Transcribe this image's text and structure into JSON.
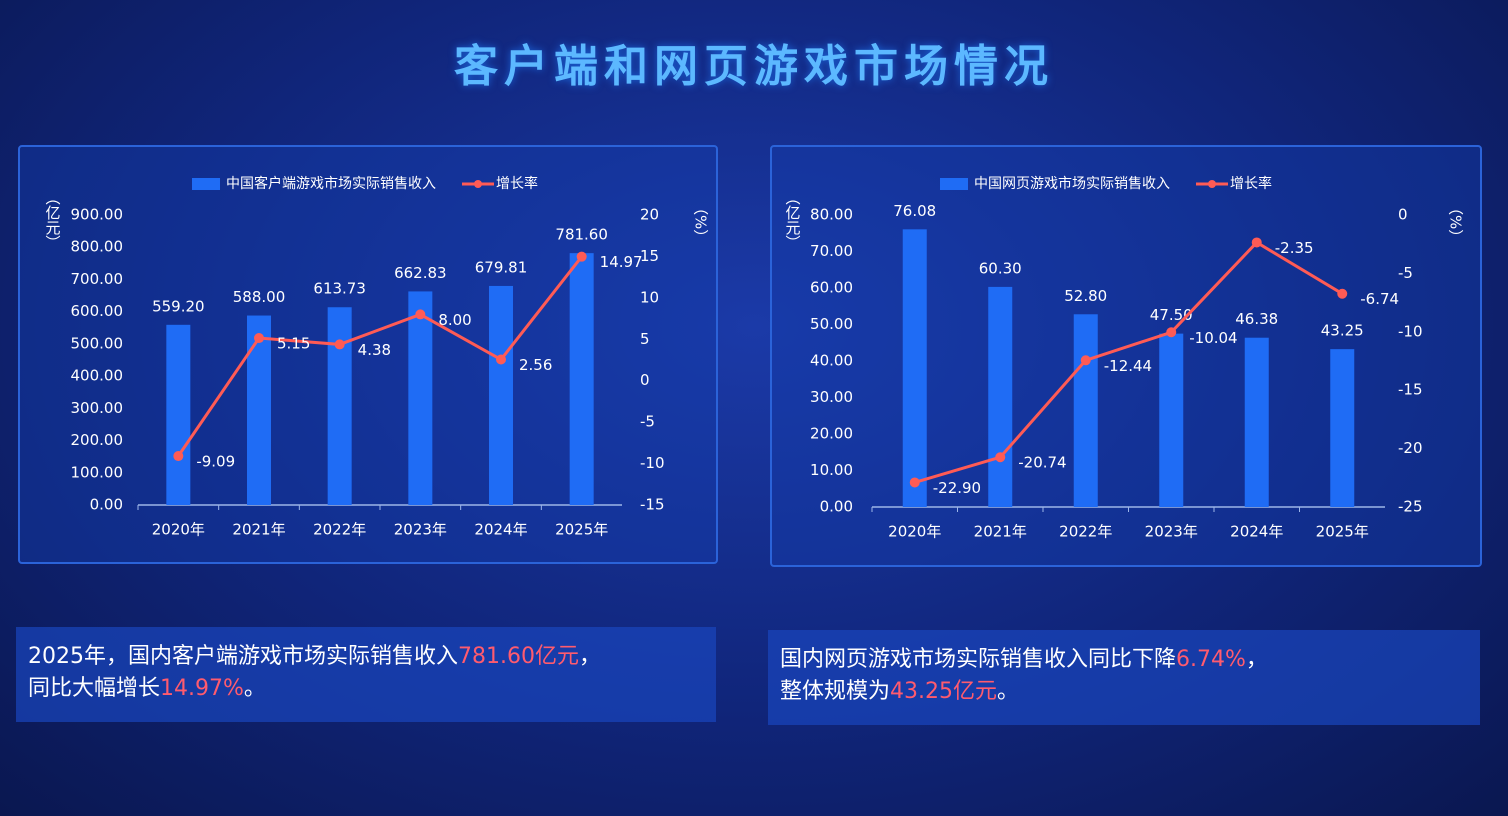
{
  "title": "客户端和网页游戏市场情况",
  "chart_data": [
    {
      "type": "combo",
      "categories": [
        "2020年",
        "2021年",
        "2022年",
        "2023年",
        "2024年",
        "2025年"
      ],
      "y_label": "（亿元）",
      "y2_label": "（%）",
      "series": [
        {
          "name": "中国客户端游戏市场实际销售收入",
          "type": "bar",
          "color": "#1f6cf5",
          "values": [
            559.2,
            588,
            613.73,
            662.83,
            679.81,
            781.6
          ],
          "value_labels": [
            "559.20",
            "588.00",
            "613.73",
            "662.83",
            "679.81",
            "781.60"
          ]
        },
        {
          "name": "增长率",
          "type": "line",
          "axis": "y2",
          "color": "#ff5b55",
          "values": [
            -9.09,
            5.15,
            4.38,
            8,
            2.56,
            14.97
          ],
          "value_labels": [
            "-9.09",
            "5.15",
            "4.38",
            "8.00",
            "2.56",
            "14.97"
          ]
        }
      ],
      "ylim": [
        0,
        900
      ],
      "yticks": [
        {
          "value": 0,
          "label": "0.00"
        },
        {
          "value": 100,
          "label": "100.00"
        },
        {
          "value": 200,
          "label": "200.00"
        },
        {
          "value": 300,
          "label": "300.00"
        },
        {
          "value": 400,
          "label": "400.00"
        },
        {
          "value": 500,
          "label": "500.00"
        },
        {
          "value": 600,
          "label": "600.00"
        },
        {
          "value": 700,
          "label": "700.00"
        },
        {
          "value": 800,
          "label": "800.00"
        },
        {
          "value": 900,
          "label": "900.00"
        }
      ],
      "y2lim": [
        -15,
        20
      ],
      "y2ticks": [
        -15,
        -10,
        -5,
        0,
        5,
        10,
        15,
        20
      ]
    },
    {
      "type": "combo",
      "categories": [
        "2020年",
        "2021年",
        "2022年",
        "2023年",
        "2024年",
        "2025年"
      ],
      "y_label": "（亿元）",
      "y2_label": "（%）",
      "series": [
        {
          "name": "中国网页游戏市场实际销售收入",
          "type": "bar",
          "color": "#1f6cf5",
          "values": [
            76.08,
            60.3,
            52.8,
            47.5,
            46.38,
            43.25
          ],
          "value_labels": [
            "76.08",
            "60.30",
            "52.80",
            "47.50",
            "46.38",
            "43.25"
          ]
        },
        {
          "name": "增长率",
          "type": "line",
          "axis": "y2",
          "color": "#ff5b55",
          "values": [
            -22.9,
            -20.74,
            -12.44,
            -10.04,
            -2.35,
            -6.74
          ],
          "value_labels": [
            "-22.90",
            "-20.74",
            "-12.44",
            "-10.04",
            "-2.35",
            "-6.74"
          ]
        }
      ],
      "ylim": [
        0,
        80
      ],
      "yticks": [
        {
          "value": 0,
          "label": "0.00"
        },
        {
          "value": 10,
          "label": "10.00"
        },
        {
          "value": 20,
          "label": "20.00"
        },
        {
          "value": 30,
          "label": "30.00"
        },
        {
          "value": 40,
          "label": "40.00"
        },
        {
          "value": 50,
          "label": "50.00"
        },
        {
          "value": 60,
          "label": "60.00"
        },
        {
          "value": 70,
          "label": "70.00"
        },
        {
          "value": 80,
          "label": "80.00"
        }
      ],
      "y2lim": [
        -25,
        0
      ],
      "y2ticks": [
        -25,
        -20,
        -15,
        -10,
        -5,
        0
      ]
    }
  ],
  "captions": [
    {
      "segments": [
        {
          "text": "2025年，国内客户端游戏市场实际销售收入",
          "color": "#ffffff"
        },
        {
          "text": "781.60亿元",
          "color": "#ff5b6e"
        },
        {
          "text": "，",
          "color": "#ffffff"
        }
      ]
    },
    {
      "segments": [
        {
          "text": "同比大幅增长",
          "color": "#ffffff"
        },
        {
          "text": "14.97%",
          "color": "#ff5b6e"
        },
        {
          "text": "。",
          "color": "#ffffff"
        }
      ]
    },
    {
      "segments": [
        {
          "text": "国内网页游戏市场实际销售收入同比下降",
          "color": "#ffffff"
        },
        {
          "text": "6.74%",
          "color": "#ff5b6e"
        },
        {
          "text": "，",
          "color": "#ffffff"
        }
      ]
    },
    {
      "segments": [
        {
          "text": "整体规模为",
          "color": "#ffffff"
        },
        {
          "text": "43.25亿元",
          "color": "#ff5b6e"
        },
        {
          "text": "。",
          "color": "#ffffff"
        }
      ]
    }
  ]
}
